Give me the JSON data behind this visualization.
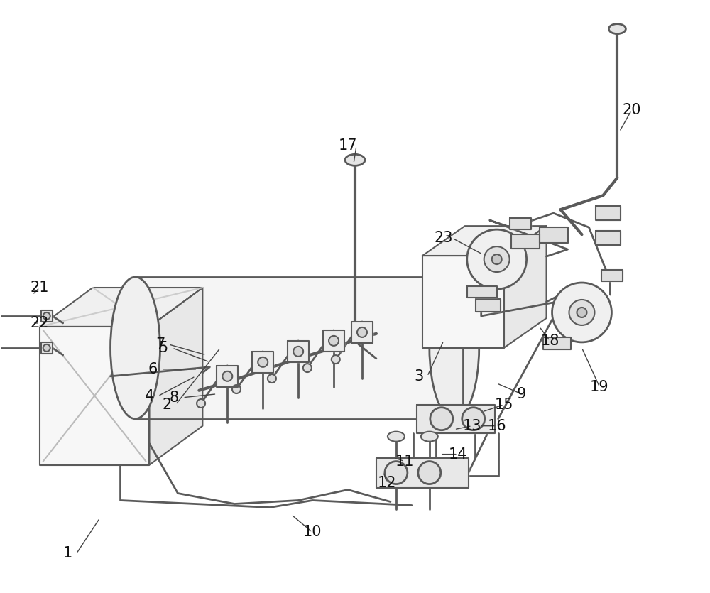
{
  "bg_color": "#ffffff",
  "line_color": "#5a5a5a",
  "fill_light": "#f7f7f7",
  "fill_mid": "#eeeeee",
  "fill_dark": "#e0e0e0",
  "label_color": "#111111",
  "figsize": [
    10.0,
    8.35
  ],
  "dpi": 100
}
